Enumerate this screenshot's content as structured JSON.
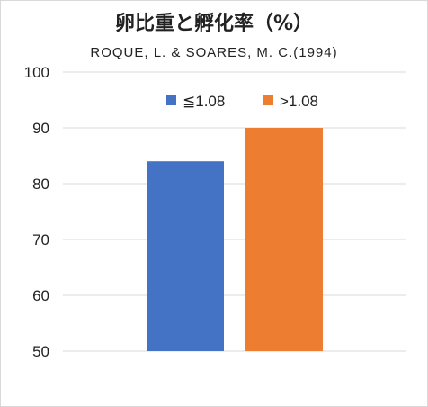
{
  "chart_data": {
    "type": "bar",
    "title": "卵比重と孵化率（%）",
    "subtitle": "ROQUE, L. & SOARES, M. C.(1994)",
    "categories": [
      ""
    ],
    "series": [
      {
        "name": "≦1.08",
        "values": [
          84
        ],
        "color": "#4472c4"
      },
      {
        "name": ">1.08",
        "values": [
          90
        ],
        "color": "#ed7d31"
      }
    ],
    "ylim": [
      50,
      100
    ],
    "yticks": [
      50,
      60,
      70,
      80,
      90,
      100
    ],
    "grid": true,
    "legend_position": "top-center",
    "gridline_color": "#d9d9d9"
  }
}
